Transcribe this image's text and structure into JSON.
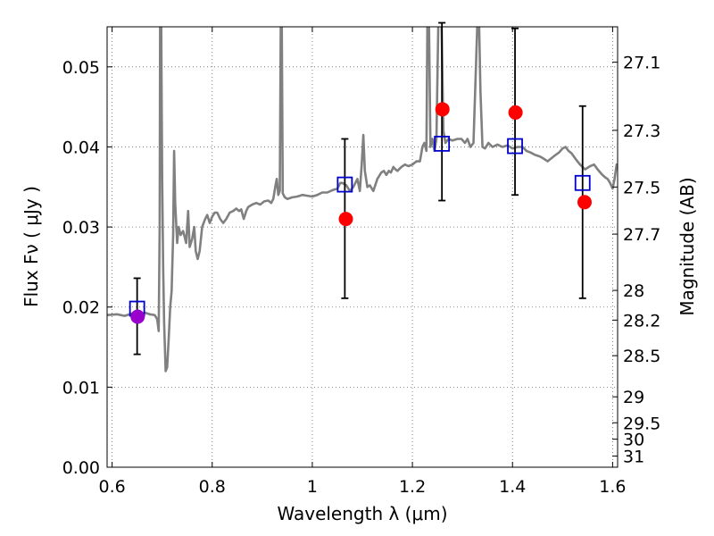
{
  "chart_data": {
    "type": "scatter",
    "xlabel": "Wavelength  λ (μm)",
    "ylabel": "Flux  Fν  ( μJy )",
    "y2label": "Magnitude (AB)",
    "xlim": [
      0.59,
      1.61
    ],
    "ylim": [
      0.0,
      0.055
    ],
    "grid": true,
    "x_ticks": [
      0.6,
      0.8,
      1.0,
      1.2,
      1.4,
      1.6
    ],
    "x_tick_labels": [
      "0.6",
      "0.8",
      "1",
      "1.2",
      "1.4",
      "1.6"
    ],
    "y_ticks": [
      0.0,
      0.01,
      0.02,
      0.03,
      0.04,
      0.05
    ],
    "y_tick_labels": [
      "0.00",
      "0.01",
      "0.02",
      "0.03",
      "0.04",
      "0.05"
    ],
    "y2_ticks": [
      {
        "label": "27.1",
        "flux": 0.05058
      },
      {
        "label": "27.3",
        "flux": 0.04207
      },
      {
        "label": "27.5",
        "flux": 0.03499
      },
      {
        "label": "27.7",
        "flux": 0.02911
      },
      {
        "label": "28",
        "flux": 0.02208
      },
      {
        "label": "28.2",
        "flux": 0.01837
      },
      {
        "label": "28.5",
        "flux": 0.01393
      },
      {
        "label": "29",
        "flux": 0.00879
      },
      {
        "label": "29.5",
        "flux": 0.00555
      },
      {
        "label": "30",
        "flux": 0.0035
      },
      {
        "label": "31",
        "flux": 0.00139
      }
    ],
    "series": [
      {
        "kind": "line",
        "color": "#808080",
        "points": [
          [
            0.59,
            0.019
          ],
          [
            0.61,
            0.0191
          ],
          [
            0.625,
            0.0189
          ],
          [
            0.64,
            0.0192
          ],
          [
            0.655,
            0.019
          ],
          [
            0.665,
            0.0193
          ],
          [
            0.675,
            0.0191
          ],
          [
            0.685,
            0.019
          ],
          [
            0.69,
            0.0185
          ],
          [
            0.693,
            0.017
          ],
          [
            0.695,
            0.03
          ],
          [
            0.696,
            0.056
          ],
          [
            0.697,
            0.056
          ],
          [
            0.698,
            0.056
          ],
          [
            0.7,
            0.036
          ],
          [
            0.702,
            0.025
          ],
          [
            0.704,
            0.018
          ],
          [
            0.707,
            0.012
          ],
          [
            0.71,
            0.0125
          ],
          [
            0.713,
            0.016
          ],
          [
            0.716,
            0.02
          ],
          [
            0.719,
            0.022
          ],
          [
            0.722,
            0.029
          ],
          [
            0.724,
            0.0395
          ],
          [
            0.726,
            0.033
          ],
          [
            0.73,
            0.028
          ],
          [
            0.733,
            0.03
          ],
          [
            0.737,
            0.029
          ],
          [
            0.742,
            0.0295
          ],
          [
            0.748,
            0.028
          ],
          [
            0.752,
            0.032
          ],
          [
            0.755,
            0.0275
          ],
          [
            0.76,
            0.0285
          ],
          [
            0.764,
            0.03
          ],
          [
            0.767,
            0.027
          ],
          [
            0.771,
            0.026
          ],
          [
            0.775,
            0.027
          ],
          [
            0.78,
            0.03
          ],
          [
            0.786,
            0.031
          ],
          [
            0.79,
            0.0315
          ],
          [
            0.795,
            0.0305
          ],
          [
            0.8,
            0.0313
          ],
          [
            0.805,
            0.0318
          ],
          [
            0.81,
            0.0318
          ],
          [
            0.816,
            0.031
          ],
          [
            0.822,
            0.0305
          ],
          [
            0.828,
            0.031
          ],
          [
            0.835,
            0.0318
          ],
          [
            0.842,
            0.032
          ],
          [
            0.848,
            0.0323
          ],
          [
            0.854,
            0.032
          ],
          [
            0.858,
            0.0322
          ],
          [
            0.863,
            0.031
          ],
          [
            0.868,
            0.032
          ],
          [
            0.872,
            0.0325
          ],
          [
            0.88,
            0.0328
          ],
          [
            0.888,
            0.033
          ],
          [
            0.896,
            0.0328
          ],
          [
            0.904,
            0.0332
          ],
          [
            0.912,
            0.0333
          ],
          [
            0.918,
            0.033
          ],
          [
            0.922,
            0.0335
          ],
          [
            0.926,
            0.035
          ],
          [
            0.929,
            0.036
          ],
          [
            0.932,
            0.034
          ],
          [
            0.935,
            0.0345
          ],
          [
            0.937,
            0.056
          ],
          [
            0.939,
            0.056
          ],
          [
            0.941,
            0.0342
          ],
          [
            0.945,
            0.0337
          ],
          [
            0.95,
            0.0335
          ],
          [
            0.96,
            0.0337
          ],
          [
            0.97,
            0.0338
          ],
          [
            0.98,
            0.034
          ],
          [
            0.99,
            0.0339
          ],
          [
            1.0,
            0.0338
          ],
          [
            1.01,
            0.034
          ],
          [
            1.02,
            0.0343
          ],
          [
            1.03,
            0.0343
          ],
          [
            1.04,
            0.0346
          ],
          [
            1.05,
            0.0348
          ],
          [
            1.056,
            0.0355
          ],
          [
            1.06,
            0.0355
          ],
          [
            1.068,
            0.0352
          ],
          [
            1.075,
            0.0345
          ],
          [
            1.082,
            0.035
          ],
          [
            1.09,
            0.036
          ],
          [
            1.095,
            0.0345
          ],
          [
            1.099,
            0.038
          ],
          [
            1.102,
            0.0415
          ],
          [
            1.105,
            0.037
          ],
          [
            1.11,
            0.035
          ],
          [
            1.115,
            0.0352
          ],
          [
            1.122,
            0.0345
          ],
          [
            1.13,
            0.036
          ],
          [
            1.138,
            0.0368
          ],
          [
            1.143,
            0.037
          ],
          [
            1.148,
            0.0365
          ],
          [
            1.153,
            0.037
          ],
          [
            1.157,
            0.0368
          ],
          [
            1.162,
            0.0375
          ],
          [
            1.166,
            0.0372
          ],
          [
            1.17,
            0.037
          ],
          [
            1.178,
            0.0375
          ],
          [
            1.185,
            0.0378
          ],
          [
            1.192,
            0.0376
          ],
          [
            1.2,
            0.0378
          ],
          [
            1.208,
            0.0382
          ],
          [
            1.215,
            0.0382
          ],
          [
            1.22,
            0.04
          ],
          [
            1.224,
            0.0405
          ],
          [
            1.228,
            0.0395
          ],
          [
            1.23,
            0.056
          ],
          [
            1.233,
            0.056
          ],
          [
            1.236,
            0.04
          ],
          [
            1.24,
            0.041
          ],
          [
            1.244,
            0.0395
          ],
          [
            1.248,
            0.041
          ],
          [
            1.252,
            0.056
          ],
          [
            1.258,
            0.056
          ],
          [
            1.262,
            0.042
          ],
          [
            1.266,
            0.0405
          ],
          [
            1.272,
            0.041
          ],
          [
            1.28,
            0.0408
          ],
          [
            1.29,
            0.041
          ],
          [
            1.298,
            0.041
          ],
          [
            1.305,
            0.0405
          ],
          [
            1.31,
            0.041
          ],
          [
            1.316,
            0.04
          ],
          [
            1.322,
            0.0405
          ],
          [
            1.326,
            0.048
          ],
          [
            1.33,
            0.056
          ],
          [
            1.333,
            0.056
          ],
          [
            1.336,
            0.047
          ],
          [
            1.34,
            0.04
          ],
          [
            1.345,
            0.0398
          ],
          [
            1.352,
            0.0405
          ],
          [
            1.36,
            0.04
          ],
          [
            1.37,
            0.0403
          ],
          [
            1.38,
            0.04
          ],
          [
            1.39,
            0.0402
          ],
          [
            1.4,
            0.0398
          ],
          [
            1.41,
            0.04
          ],
          [
            1.42,
            0.04
          ],
          [
            1.428,
            0.0395
          ],
          [
            1.436,
            0.0393
          ],
          [
            1.445,
            0.039
          ],
          [
            1.455,
            0.0388
          ],
          [
            1.463,
            0.0385
          ],
          [
            1.47,
            0.0382
          ],
          [
            1.478,
            0.0386
          ],
          [
            1.486,
            0.039
          ],
          [
            1.493,
            0.0393
          ],
          [
            1.5,
            0.0398
          ],
          [
            1.506,
            0.04
          ],
          [
            1.512,
            0.0395
          ],
          [
            1.518,
            0.0392
          ],
          [
            1.526,
            0.0385
          ],
          [
            1.535,
            0.0378
          ],
          [
            1.545,
            0.0372
          ],
          [
            1.555,
            0.0376
          ],
          [
            1.563,
            0.0378
          ],
          [
            1.57,
            0.0372
          ],
          [
            1.578,
            0.0366
          ],
          [
            1.585,
            0.0362
          ],
          [
            1.59,
            0.036
          ],
          [
            1.595,
            0.0355
          ],
          [
            1.6,
            0.0348
          ],
          [
            1.604,
            0.036
          ],
          [
            1.608,
            0.0378
          ],
          [
            1.61,
            0.0376
          ]
        ]
      },
      {
        "kind": "points",
        "marker": "open-square",
        "color": "#0000cc",
        "x": [
          0.65,
          1.065,
          1.259,
          1.405,
          1.54
        ],
        "y": [
          0.0198,
          0.0353,
          0.0404,
          0.0401,
          0.0355
        ],
        "yerr_low": [
          0.0141,
          0.0211,
          0.0333,
          0.034,
          0.0211
        ],
        "yerr_high": [
          0.0236,
          0.041,
          0.0555,
          0.0548,
          0.0451
        ]
      },
      {
        "kind": "points",
        "marker": "filled-circle",
        "color": "#ff0000",
        "x": [
          1.067,
          1.26,
          1.406,
          1.544
        ],
        "y": [
          0.031,
          0.0447,
          0.0443,
          0.0331
        ]
      },
      {
        "kind": "points",
        "marker": "filled-circle",
        "color": "#9900cc",
        "x": [
          0.651
        ],
        "y": [
          0.0188
        ]
      }
    ]
  }
}
